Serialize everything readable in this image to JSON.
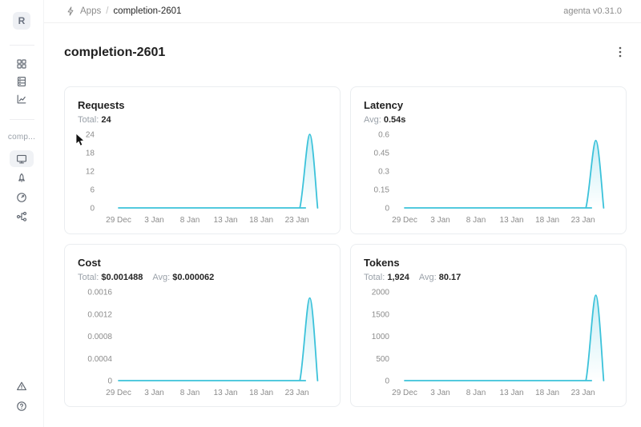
{
  "header": {
    "breadcrumb": {
      "section": "Apps",
      "separator": "/",
      "current": "completion-2601"
    },
    "version_label": "agenta v0.31.0"
  },
  "sidebar": {
    "avatar_letter": "R",
    "app_section_label": "comp...",
    "top_items": [
      {
        "name": "apps",
        "icon": "grid-icon"
      },
      {
        "name": "test-sets",
        "icon": "database-icon"
      },
      {
        "name": "observability",
        "icon": "line-chart-icon"
      }
    ],
    "app_items": [
      {
        "name": "playground",
        "icon": "monitor-icon",
        "active": true
      },
      {
        "name": "deployments",
        "icon": "rocket-icon",
        "active": false
      },
      {
        "name": "evaluations",
        "icon": "gauge-icon",
        "active": false
      },
      {
        "name": "traces",
        "icon": "tree-icon",
        "active": false
      }
    ],
    "bottom_items": [
      {
        "name": "alerts",
        "icon": "warning-triangle-icon"
      },
      {
        "name": "help",
        "icon": "question-circle-icon"
      }
    ]
  },
  "page": {
    "title": "completion-2601"
  },
  "colors": {
    "accent_line": "#3bc2da",
    "text_primary": "#262626",
    "text_secondary": "#8c8c8c",
    "card_border": "#eaedf0"
  },
  "chart_data": [
    {
      "id": "requests",
      "type": "area",
      "title": "Requests",
      "stats": [
        {
          "label": "Total:",
          "value": "24"
        }
      ],
      "x_tick_labels": [
        "29 Dec",
        "3 Jan",
        "8 Jan",
        "13 Jan",
        "18 Jan",
        "23 Jan"
      ],
      "x_tick_days": [
        0,
        5,
        10,
        15,
        20,
        25
      ],
      "x_domain": [
        0,
        28.3
      ],
      "y_ticks": [
        0,
        6,
        12,
        18,
        24
      ],
      "y_tick_labels": [
        "0",
        "6",
        "12",
        "18",
        "24"
      ],
      "y_max": 24,
      "points_day_value": [
        [
          0,
          0
        ],
        [
          24,
          0
        ],
        [
          25.4,
          0
        ],
        [
          26.8,
          24
        ],
        [
          27.9,
          0
        ]
      ],
      "line_color": "#3bc2da",
      "grid": false,
      "legend": false
    },
    {
      "id": "latency",
      "type": "area",
      "title": "Latency",
      "stats": [
        {
          "label": "Avg:",
          "value": "0.54s"
        }
      ],
      "x_tick_labels": [
        "29 Dec",
        "3 Jan",
        "8 Jan",
        "13 Jan",
        "18 Jan",
        "23 Jan"
      ],
      "x_tick_days": [
        0,
        5,
        10,
        15,
        20,
        25
      ],
      "x_domain": [
        0,
        28.3
      ],
      "y_ticks": [
        0,
        0.15,
        0.3,
        0.45,
        0.6
      ],
      "y_tick_labels": [
        "0",
        "0.15",
        "0.3",
        "0.45",
        "0.6"
      ],
      "y_max": 0.6,
      "points_day_value": [
        [
          0,
          0
        ],
        [
          24,
          0
        ],
        [
          25.4,
          0
        ],
        [
          26.8,
          0.55
        ],
        [
          27.9,
          0
        ]
      ],
      "line_color": "#3bc2da",
      "grid": false,
      "legend": false
    },
    {
      "id": "cost",
      "type": "area",
      "title": "Cost",
      "stats": [
        {
          "label": "Total:",
          "value": "$0.001488"
        },
        {
          "label": "Avg:",
          "value": "$0.000062"
        }
      ],
      "x_tick_labels": [
        "29 Dec",
        "3 Jan",
        "8 Jan",
        "13 Jan",
        "18 Jan",
        "23 Jan"
      ],
      "x_tick_days": [
        0,
        5,
        10,
        15,
        20,
        25
      ],
      "x_domain": [
        0,
        28.3
      ],
      "y_ticks": [
        0,
        0.0004,
        0.0008,
        0.0012,
        0.0016
      ],
      "y_tick_labels": [
        "0",
        "0.0004",
        "0.0008",
        "0.0012",
        "0.0016"
      ],
      "y_max": 0.0016,
      "points_day_value": [
        [
          0,
          0
        ],
        [
          24,
          0
        ],
        [
          25.4,
          0
        ],
        [
          26.8,
          0.00149
        ],
        [
          27.9,
          0
        ]
      ],
      "line_color": "#3bc2da",
      "grid": false,
      "legend": false
    },
    {
      "id": "tokens",
      "type": "area",
      "title": "Tokens",
      "stats": [
        {
          "label": "Total:",
          "value": "1,924"
        },
        {
          "label": "Avg:",
          "value": "80.17"
        }
      ],
      "x_tick_labels": [
        "29 Dec",
        "3 Jan",
        "8 Jan",
        "13 Jan",
        "18 Jan",
        "23 Jan"
      ],
      "x_tick_days": [
        0,
        5,
        10,
        15,
        20,
        25
      ],
      "x_domain": [
        0,
        28.3
      ],
      "y_ticks": [
        0,
        500,
        1000,
        1500,
        2000
      ],
      "y_tick_labels": [
        "0",
        "500",
        "1000",
        "1500",
        "2000"
      ],
      "y_max": 2000,
      "points_day_value": [
        [
          0,
          0
        ],
        [
          24,
          0
        ],
        [
          25.4,
          0
        ],
        [
          26.8,
          1924
        ],
        [
          27.9,
          0
        ]
      ],
      "line_color": "#3bc2da",
      "grid": false,
      "legend": false
    }
  ]
}
